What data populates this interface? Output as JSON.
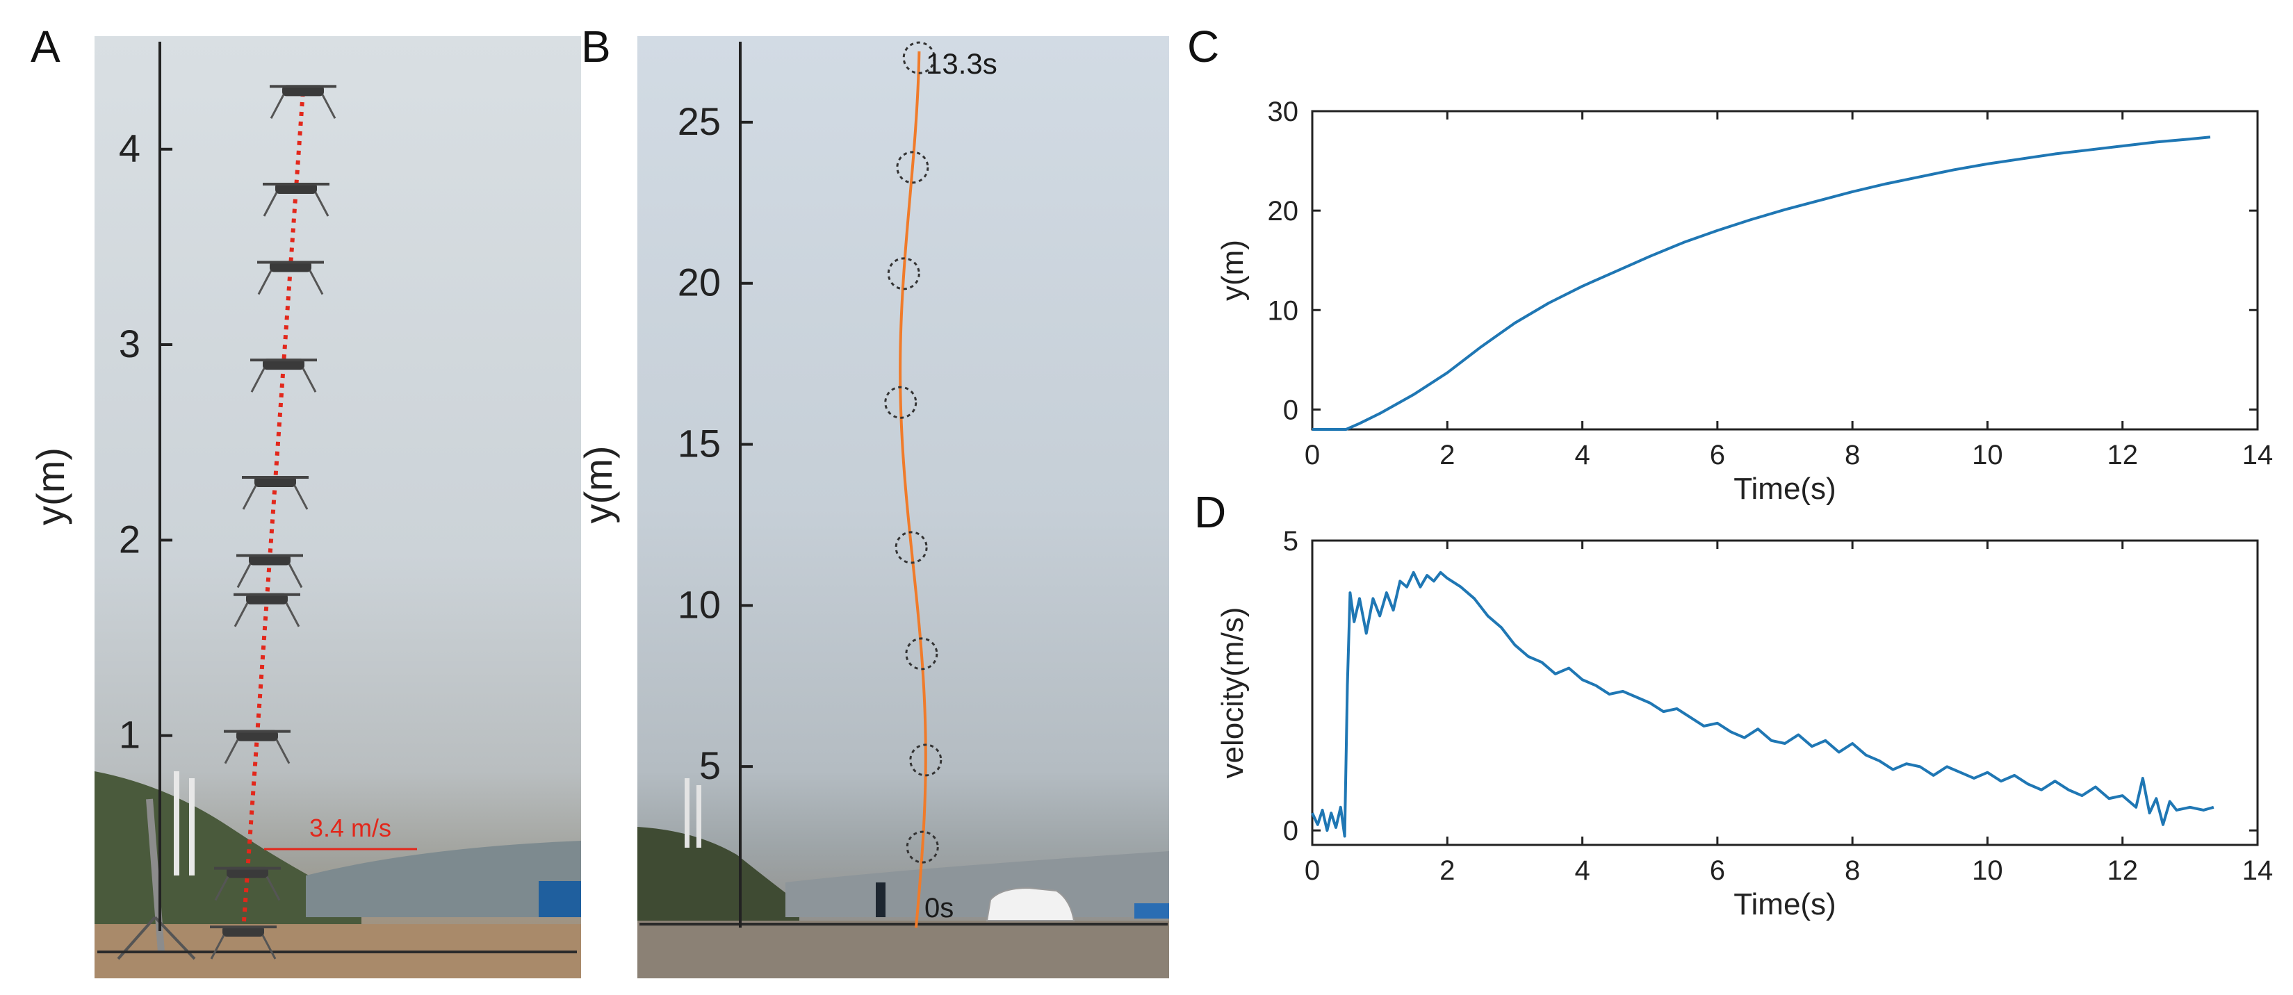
{
  "panels": {
    "a": {
      "letter": "A"
    },
    "b": {
      "letter": "B"
    },
    "c": {
      "letter": "C"
    },
    "d": {
      "letter": "D"
    }
  },
  "colors": {
    "series": "#1f77b4",
    "trajectory_a": "#e2271b",
    "trajectory_b": "#f07b2a",
    "axis": "#222222"
  },
  "chart_data": [
    {
      "id": "A",
      "type": "scatter",
      "title": "",
      "ylabel": "y(m)",
      "ylim": [
        0,
        4.55
      ],
      "yticks": [
        1,
        2,
        3,
        4
      ],
      "y": [
        0.0,
        0.3,
        1.0,
        1.7,
        1.9,
        2.3,
        2.9,
        3.4,
        3.8,
        4.3
      ],
      "annotations": [
        {
          "text": "3.4 m/s"
        }
      ]
    },
    {
      "id": "B",
      "type": "line",
      "title": "",
      "ylabel": "y(m)",
      "ylim": [
        0,
        27.5
      ],
      "yticks": [
        5,
        10,
        15,
        20,
        25
      ],
      "markers_y": [
        2.5,
        5.2,
        8.5,
        11.8,
        16.3,
        20.3,
        23.6,
        27.0
      ],
      "annotations": [
        {
          "text": "0s"
        },
        {
          "text": "13.3s"
        }
      ]
    },
    {
      "id": "C",
      "type": "line",
      "title": "",
      "xlabel": "Time(s)",
      "ylabel": "y(m)",
      "xlim": [
        0,
        14
      ],
      "ylim": [
        -2,
        30
      ],
      "xticks": [
        0,
        2,
        4,
        6,
        8,
        10,
        12,
        14
      ],
      "yticks": [
        0,
        10,
        20,
        30
      ],
      "series": [
        {
          "name": "y",
          "x": [
            0,
            0.5,
            0.7,
            1,
            1.5,
            2,
            2.5,
            3,
            3.5,
            4,
            4.5,
            5,
            5.5,
            6,
            6.5,
            7,
            7.5,
            8,
            8.5,
            9,
            9.5,
            10,
            10.5,
            11,
            11.5,
            12,
            12.5,
            13,
            13.3
          ],
          "values": [
            -2,
            -2,
            -1.4,
            -0.4,
            1.5,
            3.7,
            6.3,
            8.7,
            10.7,
            12.4,
            13.9,
            15.4,
            16.8,
            18.0,
            19.1,
            20.1,
            21.0,
            21.9,
            22.7,
            23.4,
            24.1,
            24.7,
            25.2,
            25.7,
            26.1,
            26.5,
            26.9,
            27.2,
            27.4
          ]
        }
      ]
    },
    {
      "id": "D",
      "type": "line",
      "title": "",
      "xlabel": "Time(s)",
      "ylabel": "velocity(m/s)",
      "xlim": [
        0,
        14
      ],
      "ylim": [
        -0.25,
        5
      ],
      "xticks": [
        0,
        2,
        4,
        6,
        8,
        10,
        12,
        14
      ],
      "yticks": [
        0,
        5
      ],
      "series": [
        {
          "name": "velocity",
          "x": [
            0,
            0.08,
            0.15,
            0.22,
            0.28,
            0.35,
            0.42,
            0.48,
            0.52,
            0.56,
            0.62,
            0.7,
            0.8,
            0.9,
            1.0,
            1.1,
            1.2,
            1.3,
            1.4,
            1.5,
            1.6,
            1.7,
            1.8,
            1.9,
            2.0,
            2.2,
            2.4,
            2.6,
            2.8,
            3.0,
            3.2,
            3.4,
            3.6,
            3.8,
            4.0,
            4.2,
            4.4,
            4.6,
            4.8,
            5.0,
            5.2,
            5.4,
            5.6,
            5.8,
            6.0,
            6.2,
            6.4,
            6.6,
            6.8,
            7.0,
            7.2,
            7.4,
            7.6,
            7.8,
            8.0,
            8.2,
            8.4,
            8.6,
            8.8,
            9.0,
            9.2,
            9.4,
            9.6,
            9.8,
            10.0,
            10.2,
            10.4,
            10.6,
            10.8,
            11.0,
            11.2,
            11.4,
            11.6,
            11.8,
            12.0,
            12.2,
            12.3,
            12.4,
            12.5,
            12.6,
            12.7,
            12.8,
            13.0,
            13.2,
            13.35
          ],
          "values": [
            0.3,
            0.1,
            0.35,
            0.0,
            0.3,
            0.05,
            0.4,
            -0.1,
            2.5,
            4.1,
            3.6,
            4.0,
            3.4,
            4.0,
            3.7,
            4.1,
            3.8,
            4.3,
            4.2,
            4.45,
            4.2,
            4.4,
            4.3,
            4.45,
            4.35,
            4.2,
            4.0,
            3.7,
            3.5,
            3.2,
            3.0,
            2.9,
            2.7,
            2.8,
            2.6,
            2.5,
            2.35,
            2.4,
            2.3,
            2.2,
            2.05,
            2.1,
            1.95,
            1.8,
            1.85,
            1.7,
            1.6,
            1.75,
            1.55,
            1.5,
            1.65,
            1.45,
            1.55,
            1.35,
            1.5,
            1.3,
            1.2,
            1.05,
            1.15,
            1.1,
            0.95,
            1.1,
            1.0,
            0.9,
            1.0,
            0.85,
            0.95,
            0.8,
            0.7,
            0.85,
            0.7,
            0.6,
            0.75,
            0.55,
            0.6,
            0.4,
            0.9,
            0.3,
            0.55,
            0.1,
            0.5,
            0.35,
            0.4,
            0.35,
            0.4
          ]
        }
      ]
    }
  ]
}
